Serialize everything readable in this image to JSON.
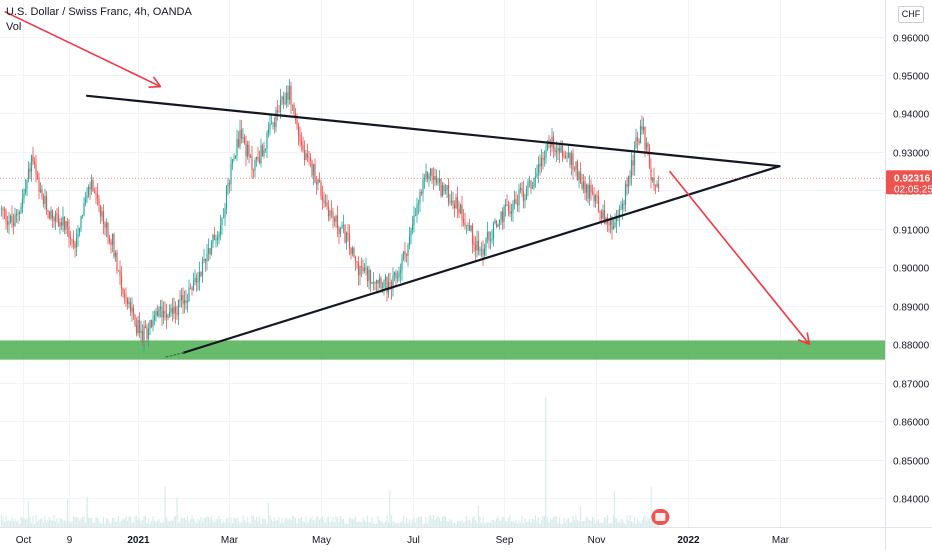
{
  "legend": {
    "title": "U.S. Dollar / Swiss Franc, 4h, OANDA",
    "volume_label": "Vol"
  },
  "currency": "CHF",
  "price_badge": {
    "price": "0.92316",
    "countdown": "02:05:25",
    "color": "#ef5350"
  },
  "chart_data": {
    "type": "candlestick",
    "symbol": "USD/CHF",
    "ylim": [
      0.8325,
      0.9695
    ],
    "y_ticks": [
      {
        "value": 0.84,
        "label": "0.84000"
      },
      {
        "value": 0.85,
        "label": "0.85000"
      },
      {
        "value": 0.86,
        "label": "0.86000"
      },
      {
        "value": 0.87,
        "label": "0.87000"
      },
      {
        "value": 0.88,
        "label": "0.88000"
      },
      {
        "value": 0.89,
        "label": "0.89000"
      },
      {
        "value": 0.9,
        "label": "0.90000"
      },
      {
        "value": 0.91,
        "label": "0.91000"
      },
      {
        "value": 0.92,
        "label": "0.92000"
      },
      {
        "value": 0.93,
        "label": "0.93000"
      },
      {
        "value": 0.94,
        "label": "0.94000"
      },
      {
        "value": 0.95,
        "label": "0.95000"
      },
      {
        "value": 0.96,
        "label": "0.96000"
      }
    ],
    "x_ticks": [
      {
        "t": 0.5,
        "label": "Oct",
        "bold": false
      },
      {
        "t": 1.5,
        "label": "9",
        "bold": false
      },
      {
        "t": 3.0,
        "label": "2021",
        "bold": true
      },
      {
        "t": 5.0,
        "label": "Mar",
        "bold": false
      },
      {
        "t": 7.0,
        "label": "May",
        "bold": false
      },
      {
        "t": 9.0,
        "label": "Jul",
        "bold": false
      },
      {
        "t": 11.0,
        "label": "Sep",
        "bold": false
      },
      {
        "t": 13.0,
        "label": "Nov",
        "bold": false
      },
      {
        "t": 15.0,
        "label": "2022",
        "bold": true
      },
      {
        "t": 17.0,
        "label": "Mar",
        "bold": false
      }
    ],
    "x_range": [
      0,
      19.3
    ],
    "last_t": 14.38,
    "price_path": [
      [
        0.0,
        0.915
      ],
      [
        0.3,
        0.911
      ],
      [
        0.55,
        0.92
      ],
      [
        0.7,
        0.929
      ],
      [
        0.85,
        0.919
      ],
      [
        1.1,
        0.914
      ],
      [
        1.4,
        0.911
      ],
      [
        1.6,
        0.905
      ],
      [
        1.8,
        0.915
      ],
      [
        2.0,
        0.922
      ],
      [
        2.2,
        0.913
      ],
      [
        2.45,
        0.907
      ],
      [
        2.7,
        0.893
      ],
      [
        2.9,
        0.887
      ],
      [
        3.1,
        0.882
      ],
      [
        3.35,
        0.886
      ],
      [
        3.55,
        0.889
      ],
      [
        3.85,
        0.889
      ],
      [
        4.1,
        0.893
      ],
      [
        4.3,
        0.897
      ],
      [
        4.55,
        0.905
      ],
      [
        4.8,
        0.91
      ],
      [
        4.95,
        0.92
      ],
      [
        5.1,
        0.93
      ],
      [
        5.25,
        0.935
      ],
      [
        5.5,
        0.926
      ],
      [
        5.75,
        0.931
      ],
      [
        6.05,
        0.94
      ],
      [
        6.3,
        0.946
      ],
      [
        6.45,
        0.938
      ],
      [
        6.65,
        0.928
      ],
      [
        6.85,
        0.925
      ],
      [
        7.05,
        0.918
      ],
      [
        7.3,
        0.912
      ],
      [
        7.55,
        0.908
      ],
      [
        7.75,
        0.901
      ],
      [
        8.0,
        0.898
      ],
      [
        8.3,
        0.897
      ],
      [
        8.5,
        0.894
      ],
      [
        8.7,
        0.899
      ],
      [
        8.95,
        0.908
      ],
      [
        9.15,
        0.918
      ],
      [
        9.35,
        0.925
      ],
      [
        9.6,
        0.921
      ],
      [
        9.85,
        0.918
      ],
      [
        10.05,
        0.915
      ],
      [
        10.3,
        0.908
      ],
      [
        10.5,
        0.904
      ],
      [
        10.75,
        0.91
      ],
      [
        11.0,
        0.914
      ],
      [
        11.3,
        0.918
      ],
      [
        11.55,
        0.921
      ],
      [
        11.8,
        0.928
      ],
      [
        12.0,
        0.933
      ],
      [
        12.25,
        0.93
      ],
      [
        12.5,
        0.927
      ],
      [
        12.75,
        0.921
      ],
      [
        13.0,
        0.918
      ],
      [
        13.2,
        0.912
      ],
      [
        13.4,
        0.91
      ],
      [
        13.65,
        0.92
      ],
      [
        13.85,
        0.931
      ],
      [
        14.0,
        0.936
      ],
      [
        14.15,
        0.929
      ],
      [
        14.25,
        0.919
      ],
      [
        14.38,
        0.9232
      ]
    ],
    "support_zone": {
      "from": 0.876,
      "to": 0.881,
      "color": "#4caf50"
    },
    "last_price": 0.92316,
    "annotations": {
      "resistance_line": {
        "start": [
          1.9,
          0.9446
        ],
        "end": [
          17.0,
          0.9263
        ],
        "color": "#131722"
      },
      "support_line": {
        "start": [
          4.0,
          0.8778
        ],
        "end": [
          17.0,
          0.9263
        ],
        "color": "#131722"
      },
      "support_dotted_extension": {
        "start": [
          3.62,
          0.8767
        ],
        "end": [
          4.0,
          0.8778
        ],
        "color": "#2e7d32"
      },
      "arrow_top": {
        "start": [
          0.1,
          0.9665
        ],
        "end": [
          3.5,
          0.947
        ],
        "color": "#f23645"
      },
      "arrow_bottom": {
        "start": [
          14.6,
          0.925
        ],
        "end": [
          17.65,
          0.88
        ],
        "color": "#f23645"
      }
    },
    "colors": {
      "up": "#26a69a",
      "down": "#ef5350",
      "volume": "#d7ece9"
    }
  }
}
